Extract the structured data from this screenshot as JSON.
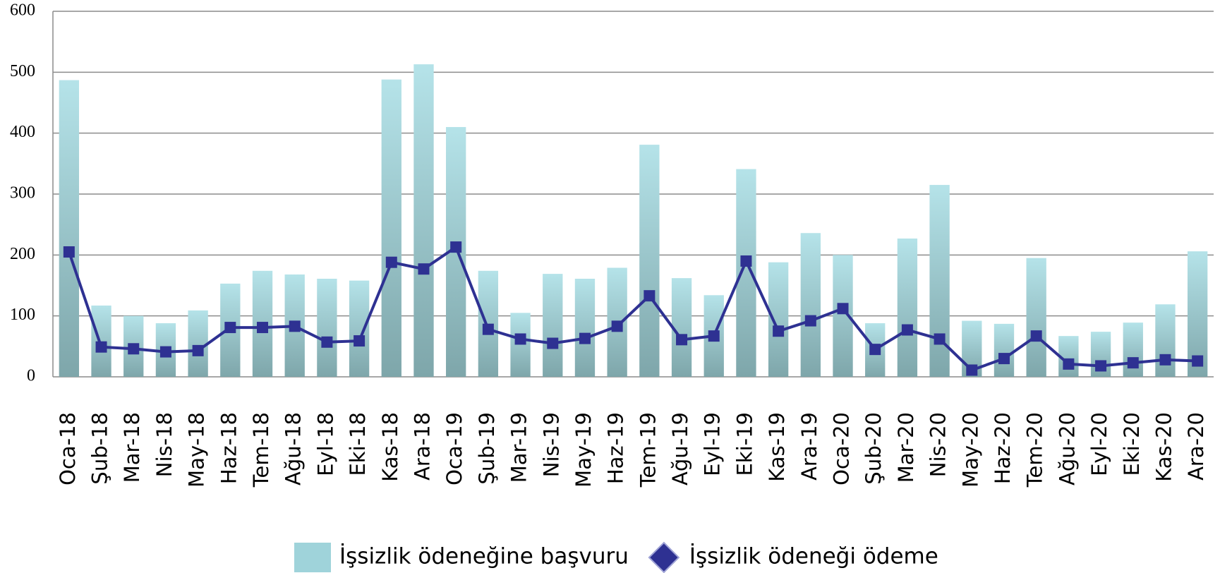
{
  "chart_data": {
    "type": "bar_line",
    "categories": [
      "Oca-18",
      "Şub-18",
      "Mar-18",
      "Nis-18",
      "May-18",
      "Haz-18",
      "Tem-18",
      "Ağu-18",
      "Eyl-18",
      "Eki-18",
      "Kas-18",
      "Ara-18",
      "Oca-19",
      "Şub-19",
      "Mar-19",
      "Nis-19",
      "May-19",
      "Haz-19",
      "Tem-19",
      "Ağu-19",
      "Eyl-19",
      "Eki-19",
      "Kas-19",
      "Ara-19",
      "Oca-20",
      "Şub-20",
      "Mar-20",
      "Nis-20",
      "May-20",
      "Haz-20",
      "Tem-20",
      "Ağu-20",
      "Eyl-20",
      "Eki-20",
      "Kas-20",
      "Ara-20"
    ],
    "series": [
      {
        "name": "İşsizlik ödeneğine başvuru",
        "type": "bar",
        "color": "#9fd3da",
        "values": [
          487,
          117,
          100,
          88,
          109,
          153,
          174,
          168,
          161,
          158,
          488,
          513,
          410,
          174,
          105,
          169,
          161,
          179,
          381,
          162,
          134,
          341,
          188,
          236,
          200,
          88,
          227,
          315,
          92,
          87,
          195,
          67,
          74,
          89,
          119,
          206
        ]
      },
      {
        "name": "İşsizlik ödeneği ödeme",
        "type": "line",
        "color": "#2e3192",
        "values": [
          205,
          49,
          46,
          41,
          43,
          81,
          81,
          83,
          57,
          59,
          188,
          177,
          213,
          78,
          62,
          55,
          63,
          83,
          133,
          61,
          67,
          190,
          75,
          92,
          112,
          45,
          77,
          62,
          11,
          30,
          67,
          21,
          18,
          23,
          28,
          26
        ]
      }
    ],
    "ylim": [
      0,
      600
    ],
    "yticks": [
      0,
      100,
      200,
      300,
      400,
      500,
      600
    ],
    "grid": true
  }
}
